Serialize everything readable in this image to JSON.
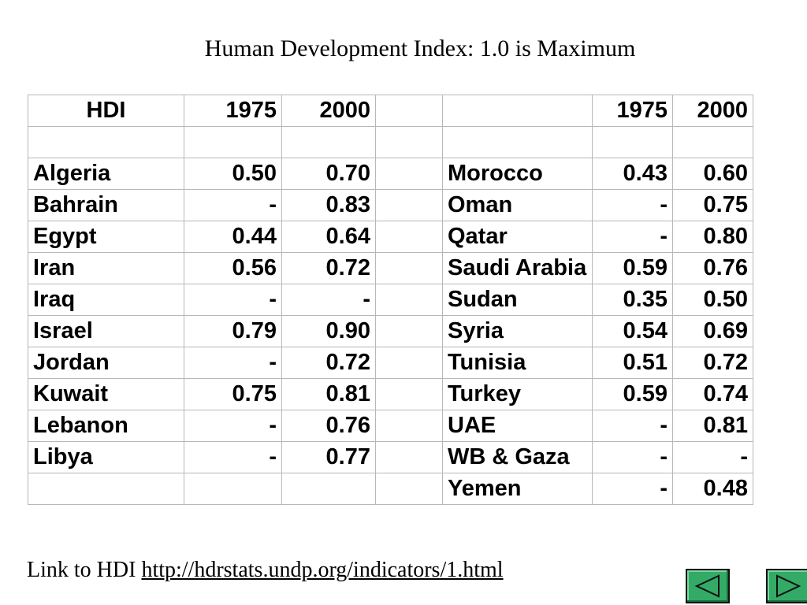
{
  "title": "Human Development Index: 1.0 is Maximum",
  "table": {
    "header": {
      "label": "HDI",
      "col1975": "1975",
      "col2000": "2000"
    },
    "left_rows": [
      {
        "country": "Algeria",
        "y1975": "0.50",
        "y2000": "0.70"
      },
      {
        "country": "Bahrain",
        "y1975": "-",
        "y2000": "0.83"
      },
      {
        "country": "Egypt",
        "y1975": "0.44",
        "y2000": "0.64"
      },
      {
        "country": "Iran",
        "y1975": "0.56",
        "y2000": "0.72"
      },
      {
        "country": "Iraq",
        "y1975": "-",
        "y2000": "-"
      },
      {
        "country": "Israel",
        "y1975": "0.79",
        "y2000": "0.90"
      },
      {
        "country": "Jordan",
        "y1975": "-",
        "y2000": "0.72"
      },
      {
        "country": "Kuwait",
        "y1975": "0.75",
        "y2000": "0.81"
      },
      {
        "country": "Lebanon",
        "y1975": "-",
        "y2000": "0.76"
      },
      {
        "country": "Libya",
        "y1975": "-",
        "y2000": "0.77"
      },
      {
        "country": "",
        "y1975": "",
        "y2000": ""
      }
    ],
    "right_rows": [
      {
        "country": "Morocco",
        "y1975": "0.43",
        "y2000": "0.60"
      },
      {
        "country": "Oman",
        "y1975": "-",
        "y2000": "0.75"
      },
      {
        "country": "Qatar",
        "y1975": "-",
        "y2000": "0.80"
      },
      {
        "country": "Saudi Arabia",
        "y1975": "0.59",
        "y2000": "0.76"
      },
      {
        "country": "Sudan",
        "y1975": "0.35",
        "y2000": "0.50"
      },
      {
        "country": "Syria",
        "y1975": "0.54",
        "y2000": "0.69"
      },
      {
        "country": "Tunisia",
        "y1975": "0.51",
        "y2000": "0.72"
      },
      {
        "country": "Turkey",
        "y1975": "0.59",
        "y2000": "0.74"
      },
      {
        "country": "UAE",
        "y1975": "-",
        "y2000": "0.81"
      },
      {
        "country": "WB & Gaza",
        "y1975": "-",
        "y2000": "-"
      },
      {
        "country": "Yemen",
        "y1975": "-",
        "y2000": "0.48"
      }
    ]
  },
  "footer": {
    "link_prefix": "Link to HDI ",
    "link_text": "http://hdrstats.undp.org/indicators/1.html"
  },
  "nav": {
    "prev_icon": "triangle-left-icon",
    "next_icon": "triangle-right-icon",
    "button_color": "#33aa66"
  }
}
